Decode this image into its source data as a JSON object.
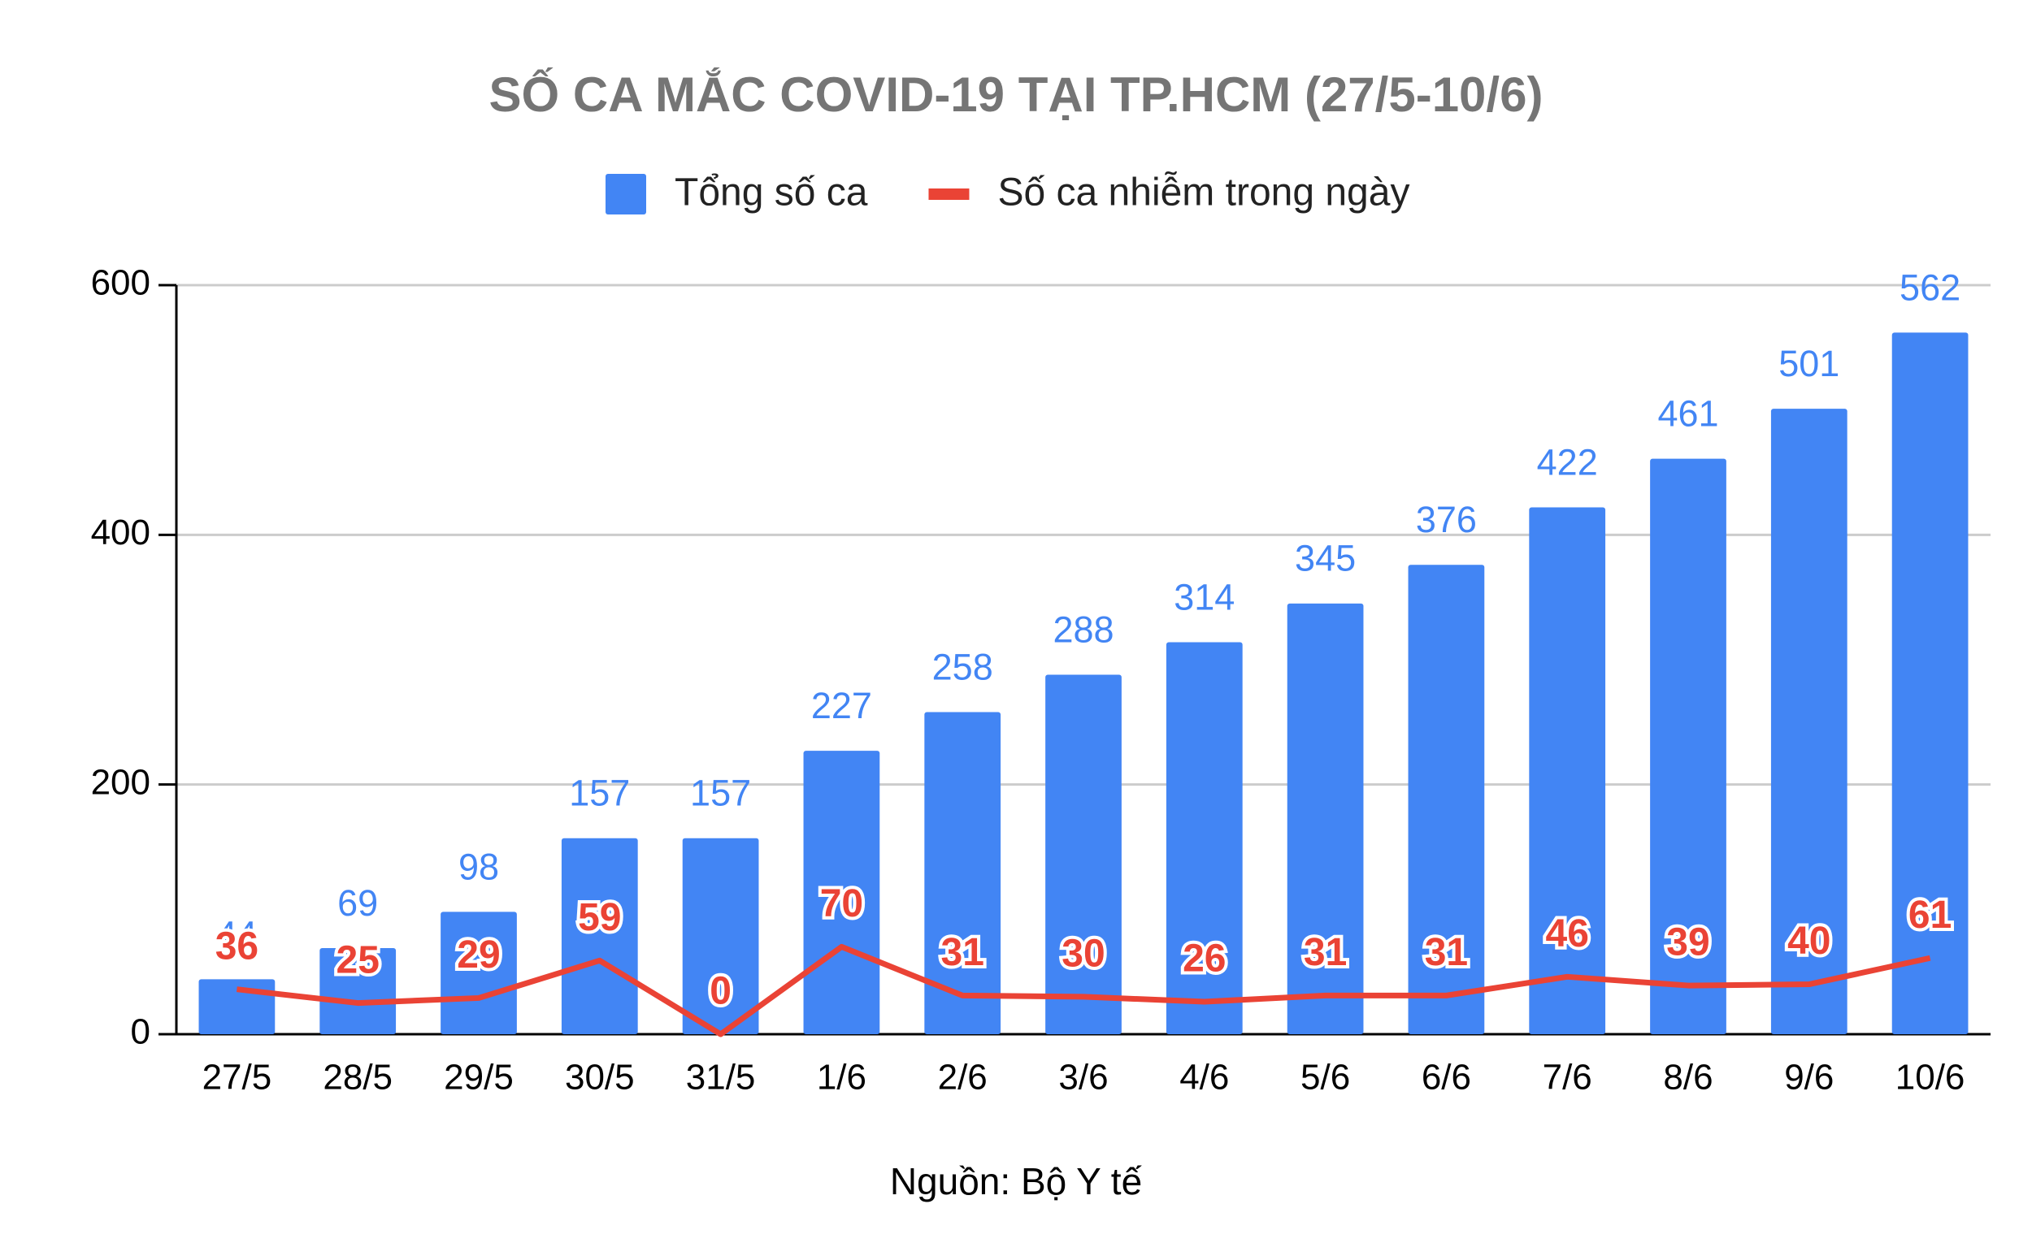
{
  "chart_data": {
    "type": "bar",
    "title": "SỐ CA MẮC COVID-19 TẠI TP.HCM (27/5-10/6)",
    "source": "Nguồn: Bộ Y tế",
    "categories": [
      "27/5",
      "28/5",
      "29/5",
      "30/5",
      "31/5",
      "1/6",
      "2/6",
      "3/6",
      "4/6",
      "5/6",
      "6/6",
      "7/6",
      "8/6",
      "9/6",
      "10/6"
    ],
    "series": [
      {
        "name": "Tổng số ca",
        "type": "bar",
        "color": "#4285f4",
        "values": [
          44,
          69,
          98,
          157,
          157,
          227,
          258,
          288,
          314,
          345,
          376,
          422,
          461,
          501,
          562
        ]
      },
      {
        "name": "Số ca nhiễm trong ngày",
        "type": "line",
        "color": "#ea4335",
        "values": [
          36,
          25,
          29,
          59,
          0,
          70,
          31,
          30,
          26,
          31,
          31,
          46,
          39,
          40,
          61
        ]
      }
    ],
    "ylim": [
      0,
      600
    ],
    "yticks": [
      0,
      200,
      400,
      600
    ],
    "grid": true
  }
}
